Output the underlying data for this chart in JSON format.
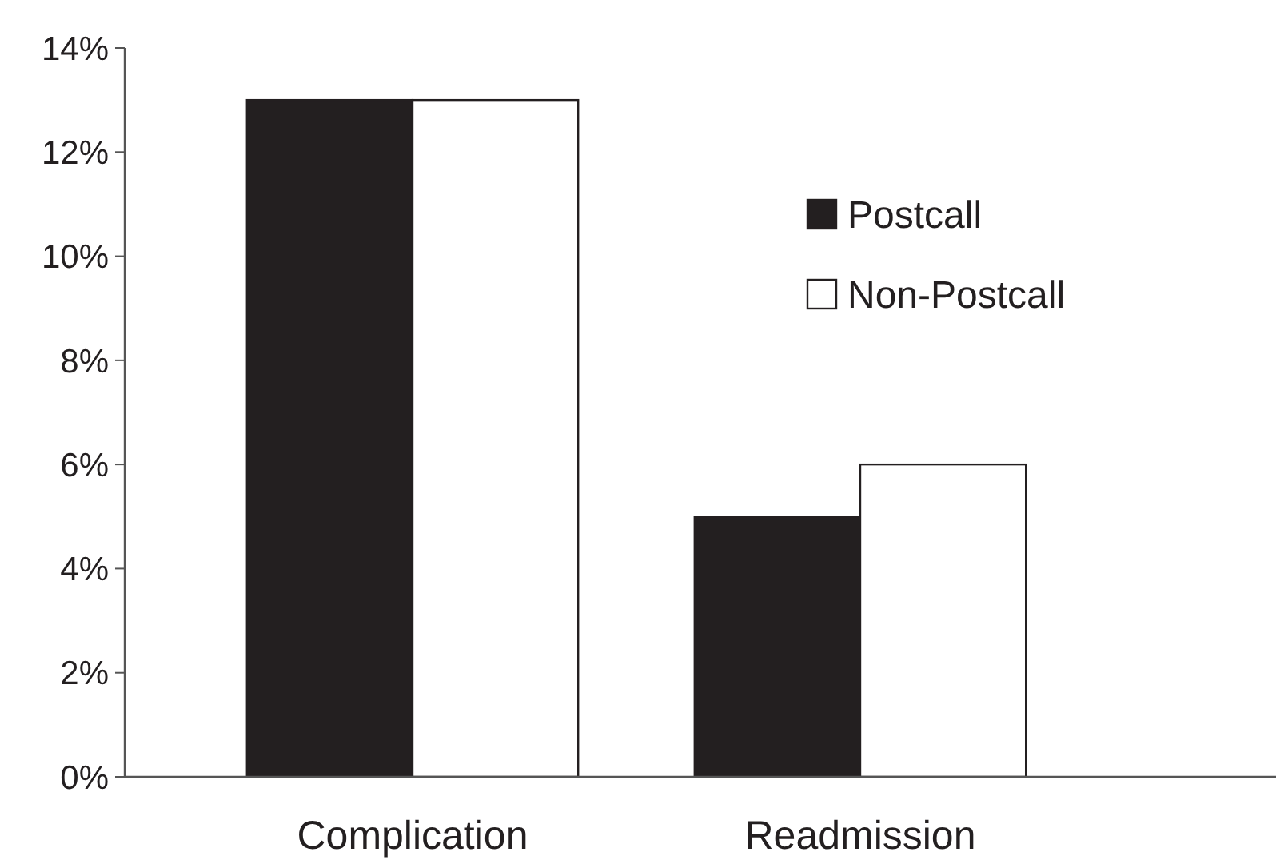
{
  "chart_data": {
    "type": "bar",
    "categories": [
      "Complication",
      "Readmission"
    ],
    "series": [
      {
        "name": "Postcall",
        "color": "#231f20",
        "values": [
          13,
          5
        ]
      },
      {
        "name": "Non-Postcall",
        "color": "#ffffff",
        "values": [
          13,
          6
        ]
      }
    ],
    "ylim": [
      0,
      14
    ],
    "yticks": [
      {
        "value": 0,
        "label": "0%"
      },
      {
        "value": 2,
        "label": "2%"
      },
      {
        "value": 4,
        "label": "4%"
      },
      {
        "value": 6,
        "label": "6%"
      },
      {
        "value": 8,
        "label": "8%"
      },
      {
        "value": 10,
        "label": "10%"
      },
      {
        "value": 12,
        "label": "12%"
      },
      {
        "value": 14,
        "label": "14%"
      }
    ],
    "grid": false,
    "legend": "top right"
  }
}
